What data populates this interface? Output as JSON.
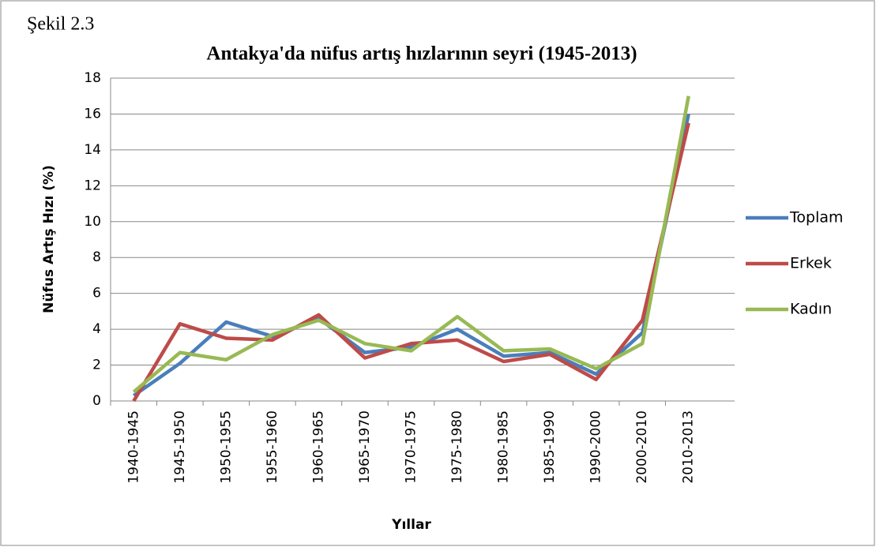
{
  "chart_data": {
    "type": "line",
    "figure_label": "Şekil 2.3",
    "title": "Antakya'da nüfus artış hızlarının seyri (1945-2013)",
    "y_label": "Nüfus Artış Hızı (%)",
    "x_label": "Yıllar",
    "categories": [
      "1940-1945",
      "1945-1950",
      "1950-1955",
      "1955-1960",
      "1960-1965",
      "1965-1970",
      "1970-1975",
      "1975-1980",
      "1980-1985",
      "1985-1990",
      "1990-2000",
      "2000-2010",
      "2010-2013"
    ],
    "series": [
      {
        "name": "Toplam",
        "color": "#4a7ebb",
        "values": [
          0.3,
          2.1,
          4.4,
          3.6,
          4.6,
          2.7,
          3.0,
          4.0,
          2.5,
          2.7,
          1.5,
          3.8,
          16.0
        ]
      },
      {
        "name": "Erkek",
        "color": "#be4b48",
        "values": [
          0.0,
          4.3,
          3.5,
          3.4,
          4.8,
          2.4,
          3.2,
          3.4,
          2.2,
          2.6,
          1.2,
          4.5,
          15.5
        ]
      },
      {
        "name": "Kadın",
        "color": "#98b954",
        "values": [
          0.5,
          2.7,
          2.3,
          3.7,
          4.5,
          3.2,
          2.8,
          4.7,
          2.8,
          2.9,
          1.8,
          3.2,
          17.0
        ]
      }
    ],
    "ylim": [
      0,
      18
    ],
    "yticks": [
      0,
      2,
      4,
      6,
      8,
      10,
      12,
      14,
      16,
      18
    ],
    "grid": true,
    "legend": "right"
  }
}
